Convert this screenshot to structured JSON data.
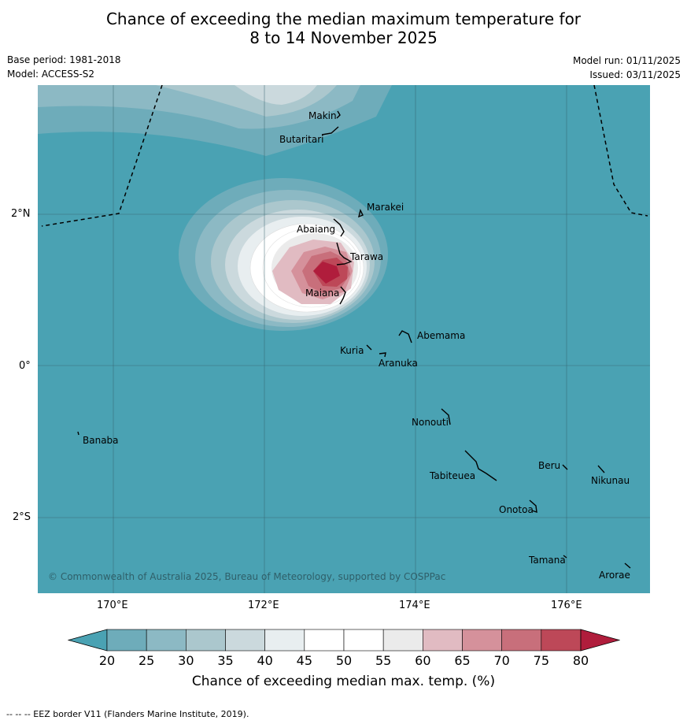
{
  "title_line1": "Chance of exceeding the median maximum temperature for",
  "title_line2": "8 to 14 November 2025",
  "base_period": "Base period: 1981-2018",
  "model": "Model: ACCESS-S2",
  "model_run": "Model run: 01/11/2025",
  "issued": "Issued: 03/11/2025",
  "copyright": "© Commonwealth of Australia 2025, Bureau of Meteorology, supported by COSPPac",
  "lon_labels": [
    "170°E",
    "172°E",
    "174°E",
    "176°E"
  ],
  "lat_labels": [
    "2°N",
    "0°",
    "2°S"
  ],
  "places": [
    "Makin",
    "Butaritari",
    "Marakei",
    "Abaiang",
    "Tarawa",
    "Maiana",
    "Abemama",
    "Kuria",
    "Aranuka",
    "Nonouti",
    "Banaba",
    "Beru",
    "Nikunau",
    "Tabiteuea",
    "Onotoa",
    "Tamana",
    "Arorae"
  ],
  "colorbar": {
    "ticks": [
      "20",
      "25",
      "30",
      "35",
      "40",
      "45",
      "50",
      "55",
      "60",
      "65",
      "70",
      "75",
      "80"
    ],
    "colors": [
      "#4aa2b3",
      "#6eacba",
      "#8cb9c4",
      "#abc7cd",
      "#cbd9dd",
      "#e8eef0",
      "#ffffff",
      "#ffffff",
      "#ebebeb",
      "#e1bbc2",
      "#d5919b",
      "#c86f7b",
      "#bd4858",
      "#b01d3c"
    ],
    "label": "Chance of exceeding median max. temp. (%)"
  },
  "footer": "-- -- -- EEZ border V11 (Flanders Marine Institute, 2019)."
}
